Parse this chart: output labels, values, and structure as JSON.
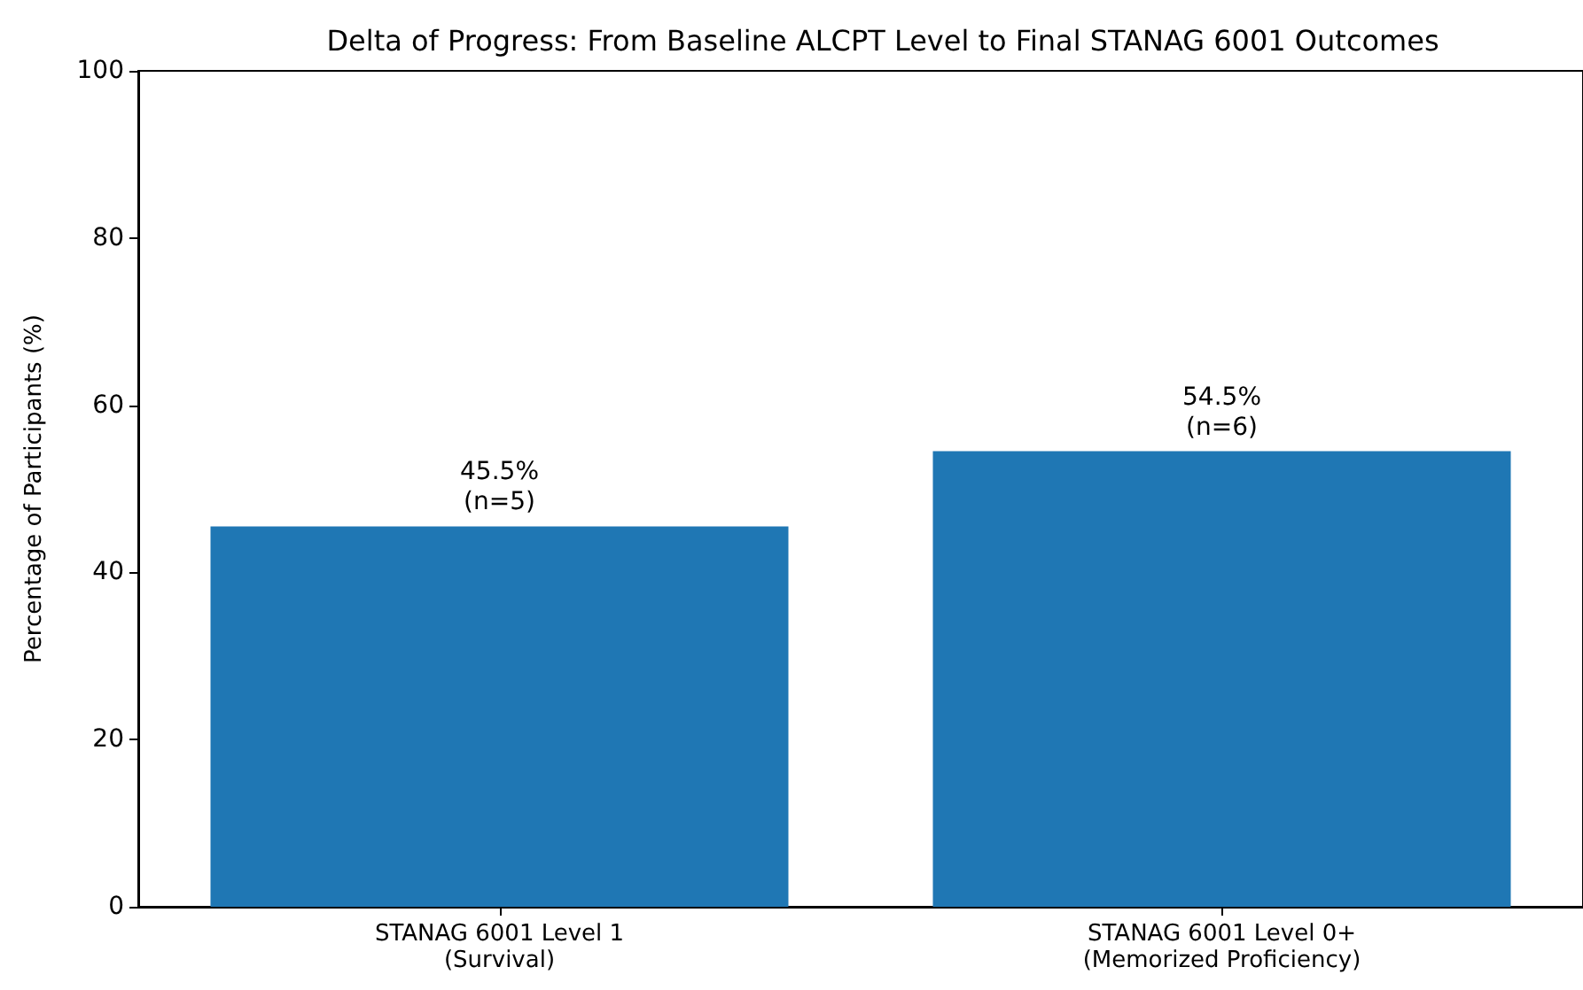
{
  "chart_data": {
    "type": "bar",
    "title": "Delta of Progress: From Baseline ALCPT Level to Final STANAG 6001 Outcomes",
    "ylabel": "Percentage of Participants (%)",
    "categories": [
      "STANAG 6001 Level 1\n(Survival)",
      "STANAG 6001 Level 0+\n(Memorized Proficiency)"
    ],
    "values": [
      45.5,
      54.5
    ],
    "value_labels": [
      "45.5%\n(n=5)",
      "54.5%\n(n=6)"
    ],
    "color": "#1f77b4",
    "ylim": [
      0,
      100
    ],
    "yticks": [
      0,
      20,
      40,
      60,
      80,
      100
    ]
  }
}
